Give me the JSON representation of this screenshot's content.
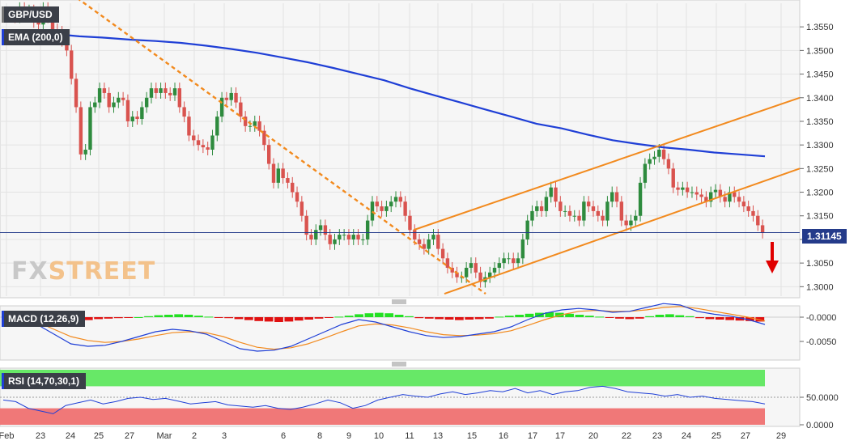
{
  "symbol": "GBP/USD",
  "overlay_label": "EMA (200,0)",
  "macd_label": "MACD (12,26,9)",
  "rsi_label": "RSI (14,70,30,1)",
  "watermark": {
    "fx": "FX",
    "street": "STREET"
  },
  "last_price": "1.31145",
  "colors": {
    "up": "#2e8b3e",
    "down": "#d9534f",
    "ema": "#1f3fd6",
    "trend": "#f28a1e",
    "macd_pos": "#22e022",
    "macd_neg": "#e01010",
    "rsi_high": "#67e867",
    "rsi_low": "#f07878",
    "price_tag": "#243b8a",
    "arrow": "#e00000"
  },
  "chart_data": [
    {
      "type": "candlestick",
      "title": "GBP/USD",
      "x_ticks": [
        "Feb",
        "23",
        "24",
        "25",
        "27",
        "Mar",
        "2",
        "3",
        "6",
        "8",
        "9",
        "10",
        "11",
        "13",
        "15",
        "16",
        "17",
        "17",
        "20",
        "22",
        "23",
        "24",
        "25",
        "27",
        "29"
      ],
      "y_ticks": [
        "1.3550",
        "1.3500",
        "1.3450",
        "1.3400",
        "1.3350",
        "1.3300",
        "1.3250",
        "1.3200",
        "1.3150",
        "1.3100",
        "1.3050",
        "1.3000"
      ],
      "ylim": [
        1.298,
        1.36
      ],
      "close": [
        1.3575,
        1.358,
        1.357,
        1.359,
        1.3575,
        1.3585,
        1.356,
        1.3555,
        1.359,
        1.357,
        1.3545,
        1.354,
        1.352,
        1.35,
        1.344,
        1.338,
        1.328,
        1.329,
        1.338,
        1.339,
        1.342,
        1.341,
        1.338,
        1.339,
        1.34,
        1.3395,
        1.335,
        1.336,
        1.3355,
        1.338,
        1.34,
        1.342,
        1.341,
        1.342,
        1.341,
        1.3405,
        1.342,
        1.338,
        1.336,
        1.332,
        1.331,
        1.33,
        1.3295,
        1.329,
        1.332,
        1.336,
        1.34,
        1.3395,
        1.341,
        1.339,
        1.336,
        1.334,
        1.334,
        1.335,
        1.333,
        1.33,
        1.326,
        1.322,
        1.325,
        1.323,
        1.322,
        1.32,
        1.318,
        1.315,
        1.311,
        1.31,
        1.312,
        1.313,
        1.311,
        1.309,
        1.31,
        1.311,
        1.311,
        1.31,
        1.311,
        1.31,
        1.31,
        1.314,
        1.318,
        1.317,
        1.316,
        1.317,
        1.318,
        1.319,
        1.318,
        1.315,
        1.312,
        1.31,
        1.309,
        1.308,
        1.31,
        1.311,
        1.308,
        1.306,
        1.304,
        1.303,
        1.302,
        1.302,
        1.304,
        1.305,
        1.303,
        1.301,
        1.302,
        1.303,
        1.304,
        1.305,
        1.306,
        1.306,
        1.305,
        1.306,
        1.31,
        1.314,
        1.316,
        1.317,
        1.316,
        1.319,
        1.321,
        1.318,
        1.316,
        1.316,
        1.315,
        1.315,
        1.314,
        1.318,
        1.317,
        1.316,
        1.315,
        1.314,
        1.318,
        1.32,
        1.318,
        1.314,
        1.313,
        1.314,
        1.315,
        1.322,
        1.326,
        1.327,
        1.3275,
        1.329,
        1.327,
        1.325,
        1.321,
        1.3205,
        1.321,
        1.32,
        1.32,
        1.3195,
        1.319,
        1.318,
        1.32,
        1.3205,
        1.319,
        1.318,
        1.32,
        1.319,
        1.318,
        1.317,
        1.316,
        1.315,
        1.313,
        1.3114
      ],
      "ema_200": [
        1.354,
        1.3538,
        1.3535,
        1.353,
        1.3527,
        1.3523,
        1.352,
        1.3516,
        1.351,
        1.3503,
        1.3495,
        1.3485,
        1.3475,
        1.3463,
        1.345,
        1.3437,
        1.342,
        1.3405,
        1.339,
        1.3375,
        1.336,
        1.3345,
        1.3335,
        1.3322,
        1.331,
        1.3302,
        1.3295,
        1.329,
        1.3284,
        1.328,
        1.3276
      ],
      "trendlines": {
        "falling": [
          [
            "Feb",
            1.362
          ],
          [
            "13",
            1.2985
          ]
        ],
        "channel_top": [
          [
            "11",
            1.312
          ],
          [
            "29",
            1.34
          ]
        ],
        "channel_bottom": [
          [
            "13",
            1.2985
          ],
          [
            "29",
            1.325
          ]
        ]
      }
    },
    {
      "type": "bar",
      "title": "MACD (12,26,9)",
      "y_ticks": [
        "-0.0000",
        "-0.0050"
      ],
      "ylim": [
        -0.0085,
        0.002
      ],
      "histogram": [
        -0.0004,
        -0.0006,
        -0.0009,
        -0.0012,
        -0.0014,
        -0.0013,
        -0.001,
        -0.0008,
        -0.0006,
        -0.0004,
        -0.0003,
        -0.0002,
        -0.0001,
        0.0,
        0.0002,
        0.0004,
        0.0005,
        0.0006,
        0.0005,
        0.0003,
        0.0001,
        -0.0001,
        -0.0002,
        -0.0004,
        -0.0006,
        -0.0008,
        -0.0009,
        -0.001,
        -0.0009,
        -0.0007,
        -0.0005,
        -0.0003,
        -0.0001,
        0.0001,
        0.0003,
        0.0006,
        0.0008,
        0.0009,
        0.0008,
        0.0005,
        0.0002,
        -0.0002,
        -0.0003,
        -0.0004,
        -0.0005,
        -0.0006,
        -0.0005,
        -0.0004,
        -0.0003,
        0.0001,
        0.0003,
        0.0005,
        0.0007,
        0.0009,
        0.001,
        0.0009,
        0.0007,
        0.0005,
        0.0003,
        0.0001,
        -0.0001,
        -0.0003,
        -0.0004,
        -0.0003,
        0.0002,
        0.0005,
        0.0006,
        0.0004,
        0.0002,
        -0.0002,
        -0.0004,
        -0.0005,
        -0.0006,
        -0.0007,
        -0.0008,
        -0.0009
      ],
      "macd": [
        0.001,
        -0.0005,
        -0.0015,
        -0.0035,
        -0.0055,
        -0.006,
        -0.0058,
        -0.005,
        -0.004,
        -0.003,
        -0.0025,
        -0.0028,
        -0.0035,
        -0.005,
        -0.0065,
        -0.007,
        -0.0068,
        -0.006,
        -0.0045,
        -0.003,
        -0.0015,
        -0.0005,
        -0.001,
        -0.002,
        -0.003,
        -0.0038,
        -0.0042,
        -0.004,
        -0.0035,
        -0.003,
        -0.002,
        -0.0005,
        0.0008,
        0.0015,
        0.0018,
        0.0015,
        0.001,
        0.0012,
        0.002,
        0.0028,
        0.0025,
        0.0012,
        0.0006,
        0.0002,
        -0.0005,
        -0.0015
      ],
      "signal": [
        0.0005,
        0.0,
        -0.001,
        -0.0025,
        -0.004,
        -0.0048,
        -0.0052,
        -0.005,
        -0.0045,
        -0.0038,
        -0.0032,
        -0.003,
        -0.0032,
        -0.004,
        -0.0052,
        -0.0062,
        -0.0066,
        -0.0063,
        -0.0055,
        -0.0043,
        -0.003,
        -0.0018,
        -0.0014,
        -0.0016,
        -0.0022,
        -0.003,
        -0.0036,
        -0.0038,
        -0.0037,
        -0.0034,
        -0.0028,
        -0.0017,
        -0.0005,
        0.0005,
        0.0012,
        0.0014,
        0.0012,
        0.0012,
        0.0015,
        0.002,
        0.0022,
        0.0018,
        0.0012,
        0.0006,
        0.0,
        -0.0008
      ]
    },
    {
      "type": "line",
      "title": "RSI (14,70,30,1)",
      "y_ticks": [
        "50.0000",
        "0.0000"
      ],
      "ylim": [
        0,
        100
      ],
      "levels": [
        70,
        30
      ],
      "rsi": [
        45,
        42,
        30,
        25,
        20,
        35,
        40,
        45,
        38,
        42,
        48,
        50,
        46,
        48,
        43,
        38,
        40,
        42,
        36,
        34,
        32,
        35,
        30,
        28,
        32,
        38,
        45,
        40,
        30,
        35,
        45,
        50,
        55,
        52,
        50,
        56,
        60,
        55,
        58,
        62,
        60,
        66,
        58,
        62,
        55,
        60,
        62,
        68,
        70,
        66,
        60,
        58,
        56,
        52,
        55,
        50,
        52,
        48,
        46,
        44,
        42,
        38
      ]
    }
  ]
}
